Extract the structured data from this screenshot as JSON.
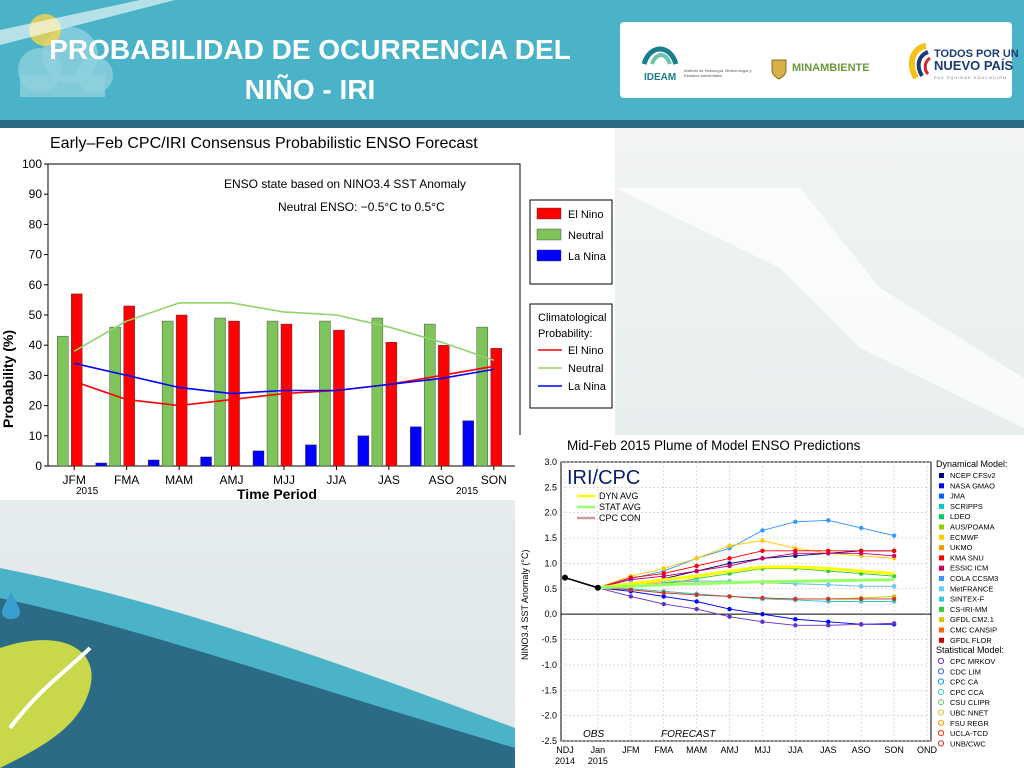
{
  "slide": {
    "title_line1": "PROBABILIDAD DE OCURRENCIA DEL",
    "title_line2": "NIÑO - IRI",
    "logos": {
      "ideam": "IDEAM",
      "ideam_sub": "Instituto de Hidrología, Meteorología y Estudios Ambientales",
      "minambiente": "MINAMBIENTE",
      "todos_line1": "TODOS POR UN",
      "todos_line2": "NUEVO PAÍS",
      "todos_sub": "PAZ EQUIDAD EDUCACIÓN"
    },
    "colors": {
      "header": "#4ab3c7",
      "header_band": "#2b6b85"
    }
  },
  "chart_data": [
    {
      "type": "bar",
      "title": "Early–Feb CPC/IRI Consensus Probabilistic ENSO Forecast",
      "xlabel": "Time Period",
      "ylabel": "Probability (%)",
      "ylim": [
        0,
        100
      ],
      "yticks": [
        0,
        10,
        20,
        30,
        40,
        50,
        60,
        70,
        80,
        90,
        100
      ],
      "categories": [
        "JFM",
        "FMA",
        "MAM",
        "AMJ",
        "MJJ",
        "JJA",
        "JAS",
        "ASO",
        "SON"
      ],
      "first_year": "2015",
      "last_year": "2015",
      "annotation_line1": "ENSO state based on NINO3.4 SST Anomaly",
      "annotation_line2": "Neutral ENSO: −0.5°C to 0.5°C",
      "series": [
        {
          "name": "El Nino",
          "color": "#ff0000",
          "values": [
            57,
            53,
            50,
            48,
            47,
            45,
            41,
            40,
            39
          ]
        },
        {
          "name": "Neutral",
          "color": "#7fc45a",
          "values": [
            43,
            46,
            48,
            49,
            48,
            48,
            49,
            47,
            46
          ]
        },
        {
          "name": "La Nina",
          "color": "#0000ff",
          "values": [
            0,
            1,
            2,
            3,
            5,
            7,
            10,
            13,
            15
          ]
        }
      ],
      "climatology_title_line1": "Climatological",
      "climatology_title_line2": "Probability:",
      "climatology": [
        {
          "name": "El Nino",
          "color": "#ff0000",
          "values": [
            28,
            22,
            20,
            22,
            24,
            25,
            27,
            30,
            33
          ]
        },
        {
          "name": "Neutral",
          "color": "#8fd46a",
          "values": [
            38,
            48,
            54,
            54,
            51,
            50,
            46,
            41,
            35
          ]
        },
        {
          "name": "La Nina",
          "color": "#0000ff",
          "values": [
            34,
            30,
            26,
            24,
            25,
            25,
            27,
            29,
            32
          ]
        }
      ]
    },
    {
      "type": "line",
      "title": "Mid-Feb 2015 Plume of Model ENSO Predictions",
      "ylabel": "NINO3.4 SST Anomaly (°C)",
      "ylim": [
        -2.5,
        3.0
      ],
      "yticks": [
        "3.0",
        "2.5",
        "2.0",
        "1.5",
        "1.0",
        "0.5",
        "0.0",
        "-0.5",
        "-1.0",
        "-1.5",
        "-2.0",
        "-2.5"
      ],
      "categories": [
        "NDJ",
        "Jan",
        "JFM",
        "FMA",
        "MAM",
        "AMJ",
        "MJJ",
        "JJA",
        "JAS",
        "ASO",
        "SON",
        "OND"
      ],
      "year_labels": [
        "2014",
        "2015"
      ],
      "obs_label": "OBS",
      "forecast_label": "FORECAST",
      "brand": "IRI/CPC",
      "inset_legend": [
        {
          "name": "DYN AVG",
          "color": "#ffff00"
        },
        {
          "name": "STAT AVG",
          "color": "#99ff66"
        },
        {
          "name": "CPC CON",
          "color": "#cc9999"
        }
      ],
      "dynamical_title": "Dynamical Model:",
      "dynamical_models": [
        {
          "name": "NCEP CFSv2",
          "color": "#000080"
        },
        {
          "name": "NASA GMAO",
          "color": "#0000ff"
        },
        {
          "name": "JMA",
          "color": "#0066ff"
        },
        {
          "name": "SCRIPPS",
          "color": "#00cccc"
        },
        {
          "name": "LDEO",
          "color": "#00cc66"
        },
        {
          "name": "AUS/POAMA",
          "color": "#99cc00"
        },
        {
          "name": "ECMWF",
          "color": "#ffcc00"
        },
        {
          "name": "UKMO",
          "color": "#ff9900"
        },
        {
          "name": "KMA SNU",
          "color": "#ff0000"
        },
        {
          "name": "ESSIC ICM",
          "color": "#cc0066"
        },
        {
          "name": "COLA CCSM3",
          "color": "#3399ff"
        },
        {
          "name": "MetFRANCE",
          "color": "#66ccff"
        },
        {
          "name": "SINTEX-F",
          "color": "#33cccc"
        },
        {
          "name": "CS-IRI-MM",
          "color": "#33cc33"
        },
        {
          "name": "GFDL CM2.1",
          "color": "#cccc00"
        },
        {
          "name": "CMC CANSIP",
          "color": "#ff6600"
        },
        {
          "name": "GFDL FLOR",
          "color": "#cc0000"
        }
      ],
      "statistical_title": "Statistical Model:",
      "statistical_models": [
        {
          "name": "CPC MRKOV",
          "color": "#6633cc"
        },
        {
          "name": "CDC LIM",
          "color": "#3366cc"
        },
        {
          "name": "CPC CA",
          "color": "#0099ff"
        },
        {
          "name": "CPC CCA",
          "color": "#33cccc"
        },
        {
          "name": "CSU CLIPR",
          "color": "#66cc66"
        },
        {
          "name": "UBC NNET",
          "color": "#cccc33"
        },
        {
          "name": "FSU REGR",
          "color": "#ff9900"
        },
        {
          "name": "UCLA-TCD",
          "color": "#ff3300"
        },
        {
          "name": "UNB/CWC",
          "color": "#cc3333"
        }
      ],
      "observed": [
        0.72,
        0.52
      ],
      "averages": [
        {
          "name": "DYN AVG",
          "color": "#ffff00",
          "values": [
            0.52,
            0.6,
            0.68,
            0.75,
            0.85,
            0.93,
            0.93,
            0.9,
            0.85,
            0.8
          ]
        },
        {
          "name": "STAT AVG",
          "color": "#99ff66",
          "values": [
            0.52,
            0.55,
            0.58,
            0.6,
            0.62,
            0.64,
            0.65,
            0.66,
            0.67,
            0.68
          ]
        }
      ],
      "model_lines": [
        {
          "color": "#000080",
          "values": [
            0.52,
            0.58,
            0.7,
            0.85,
            1.0,
            1.1,
            1.15,
            1.2,
            1.25,
            1.25
          ]
        },
        {
          "color": "#3399ff",
          "values": [
            0.52,
            0.7,
            0.85,
            1.1,
            1.3,
            1.65,
            1.82,
            1.85,
            1.7,
            1.55
          ]
        },
        {
          "color": "#ffcc00",
          "values": [
            0.52,
            0.75,
            0.9,
            1.1,
            1.35,
            1.45,
            1.3,
            1.2,
            1.15,
            1.1
          ]
        },
        {
          "color": "#ff0000",
          "values": [
            0.52,
            0.72,
            0.8,
            0.95,
            1.1,
            1.25,
            1.25,
            1.25,
            1.25,
            1.25
          ]
        },
        {
          "color": "#cc0066",
          "values": [
            0.52,
            0.68,
            0.75,
            0.85,
            0.95,
            1.1,
            1.2,
            1.2,
            1.2,
            1.15
          ]
        },
        {
          "color": "#ff9900",
          "values": [
            0.52,
            0.6,
            0.62,
            0.65,
            0.65,
            0.62,
            0.6,
            0.58,
            0.55,
            0.55
          ]
        },
        {
          "color": "#33cc33",
          "values": [
            0.52,
            0.55,
            0.6,
            0.7,
            0.8,
            0.9,
            0.9,
            0.85,
            0.8,
            0.75
          ]
        },
        {
          "color": "#cccc00",
          "values": [
            0.52,
            0.5,
            0.45,
            0.4,
            0.35,
            0.3,
            0.3,
            0.3,
            0.32,
            0.35
          ]
        },
        {
          "color": "#0000ff",
          "values": [
            0.52,
            0.45,
            0.35,
            0.25,
            0.1,
            0.0,
            -0.1,
            -0.15,
            -0.2,
            -0.2
          ]
        },
        {
          "color": "#6633cc",
          "values": [
            0.52,
            0.35,
            0.2,
            0.1,
            -0.05,
            -0.15,
            -0.22,
            -0.22,
            -0.2,
            -0.18
          ]
        },
        {
          "color": "#33cccc",
          "values": [
            0.52,
            0.5,
            0.45,
            0.4,
            0.35,
            0.3,
            0.28,
            0.25,
            0.25,
            0.25
          ]
        },
        {
          "color": "#cc3333",
          "values": [
            0.52,
            0.48,
            0.42,
            0.38,
            0.35,
            0.32,
            0.3,
            0.3,
            0.3,
            0.3
          ]
        },
        {
          "color": "#66ccff",
          "values": [
            0.52,
            0.62,
            0.65,
            0.66,
            0.65,
            0.63,
            0.6,
            0.58,
            0.55,
            0.55
          ]
        }
      ]
    }
  ]
}
